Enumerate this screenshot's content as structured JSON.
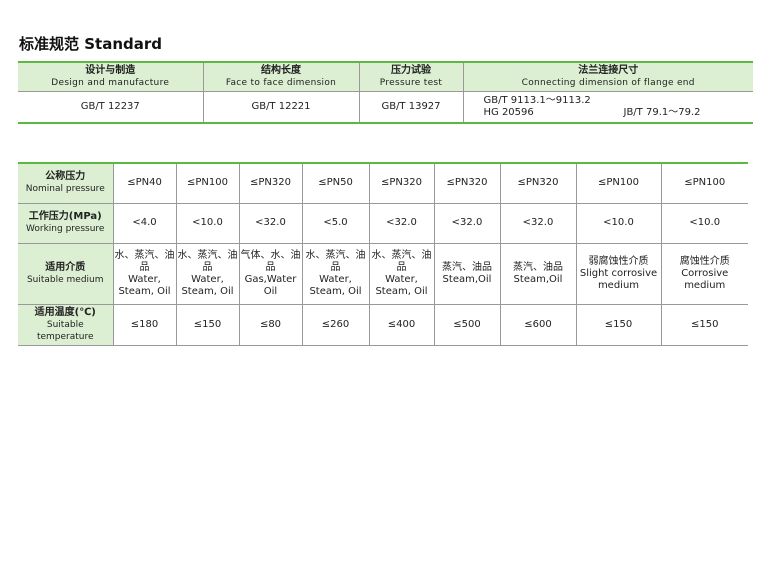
{
  "title": "标准规范  Standard",
  "standards": {
    "headers": [
      {
        "cn": "设计与制造",
        "en": "Design and manufacture"
      },
      {
        "cn": "结构长度",
        "en": "Face to face dimension"
      },
      {
        "cn": "压力试验",
        "en": "Pressure test"
      },
      {
        "cn": "法兰连接尺寸",
        "en": "Connecting dimension of flange end"
      }
    ],
    "values": [
      "GB/T 12237",
      "GB/T 12221",
      "GB/T 13927"
    ],
    "flange": {
      "line1": "GB/T 9113.1～9113.2",
      "line2a": "HG 20596",
      "line2b": "JB/T 79.1～79.2"
    }
  },
  "specs": {
    "rows": [
      {
        "cn": "公称压力",
        "en": "Nominal pressure",
        "values": [
          "≤PN40",
          "≤PN100",
          "≤PN320",
          "≤PN50",
          "≤PN320",
          "≤PN320",
          "≤PN320",
          "≤PN100",
          "≤PN100"
        ]
      },
      {
        "cn": "工作压力(MPa)",
        "en": "Working pressure",
        "values": [
          "<4.0",
          "<10.0",
          "<32.0",
          "<5.0",
          "<32.0",
          "<32.0",
          "<32.0",
          "<10.0",
          "<10.0"
        ]
      },
      {
        "cn": "适用介质",
        "en": "Suitable medium",
        "values": [
          {
            "cn": "水、蒸汽、油品",
            "en": "Water, Steam, Oil"
          },
          {
            "cn": "水、蒸汽、油品",
            "en": "Water, Steam, Oil"
          },
          {
            "cn": "气体、水、油品",
            "en": "Gas,Water Oil"
          },
          {
            "cn": "水、蒸汽、油品",
            "en": "Water, Steam, Oil"
          },
          {
            "cn": "水、蒸汽、油品",
            "en": "Water, Steam, Oil"
          },
          {
            "cn": "蒸汽、油品",
            "en": "Steam,Oil"
          },
          {
            "cn": "蒸汽、油品",
            "en": "Steam,Oil"
          },
          {
            "cn": "弱腐蚀性介质",
            "en": "Slight corrosive medium"
          },
          {
            "cn": "腐蚀性介质",
            "en": "Corrosive medium"
          }
        ]
      },
      {
        "cn": "适用温度(℃)",
        "en": "Suitable temperature",
        "values": [
          "≤180",
          "≤150",
          "≤80",
          "≤260",
          "≤400",
          "≤500",
          "≤600",
          "≤150",
          "≤150"
        ]
      }
    ]
  }
}
